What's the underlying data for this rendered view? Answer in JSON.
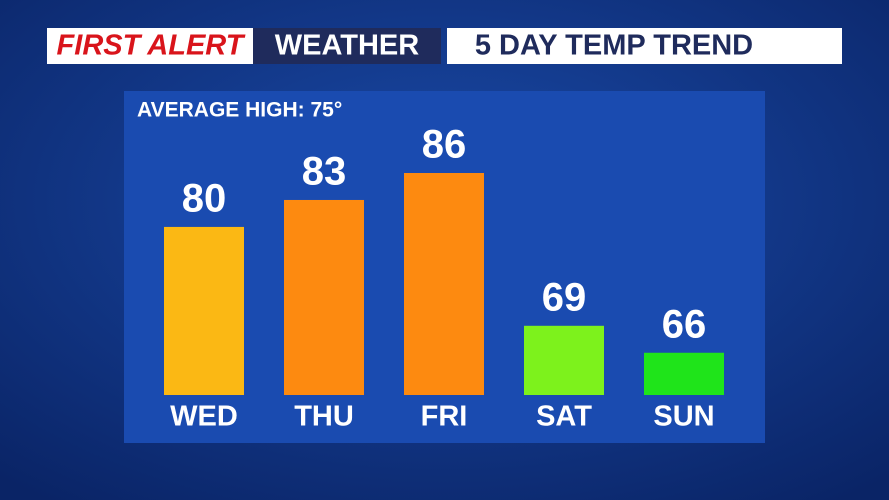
{
  "chart_data": {
    "type": "bar",
    "brand": "FIRST ALERT",
    "section": "WEATHER",
    "title": "5 DAY TEMP TREND",
    "subtitle": "AVERAGE HIGH: 75°",
    "categories": [
      "WED",
      "THU",
      "FRI",
      "SAT",
      "SUN"
    ],
    "values": [
      80,
      83,
      86,
      69,
      66
    ],
    "colors": [
      "#fbb814",
      "#fd8a10",
      "#fd8a10",
      "#7df21c",
      "#1fe41a"
    ],
    "ylim": [
      61.3,
      86
    ]
  }
}
